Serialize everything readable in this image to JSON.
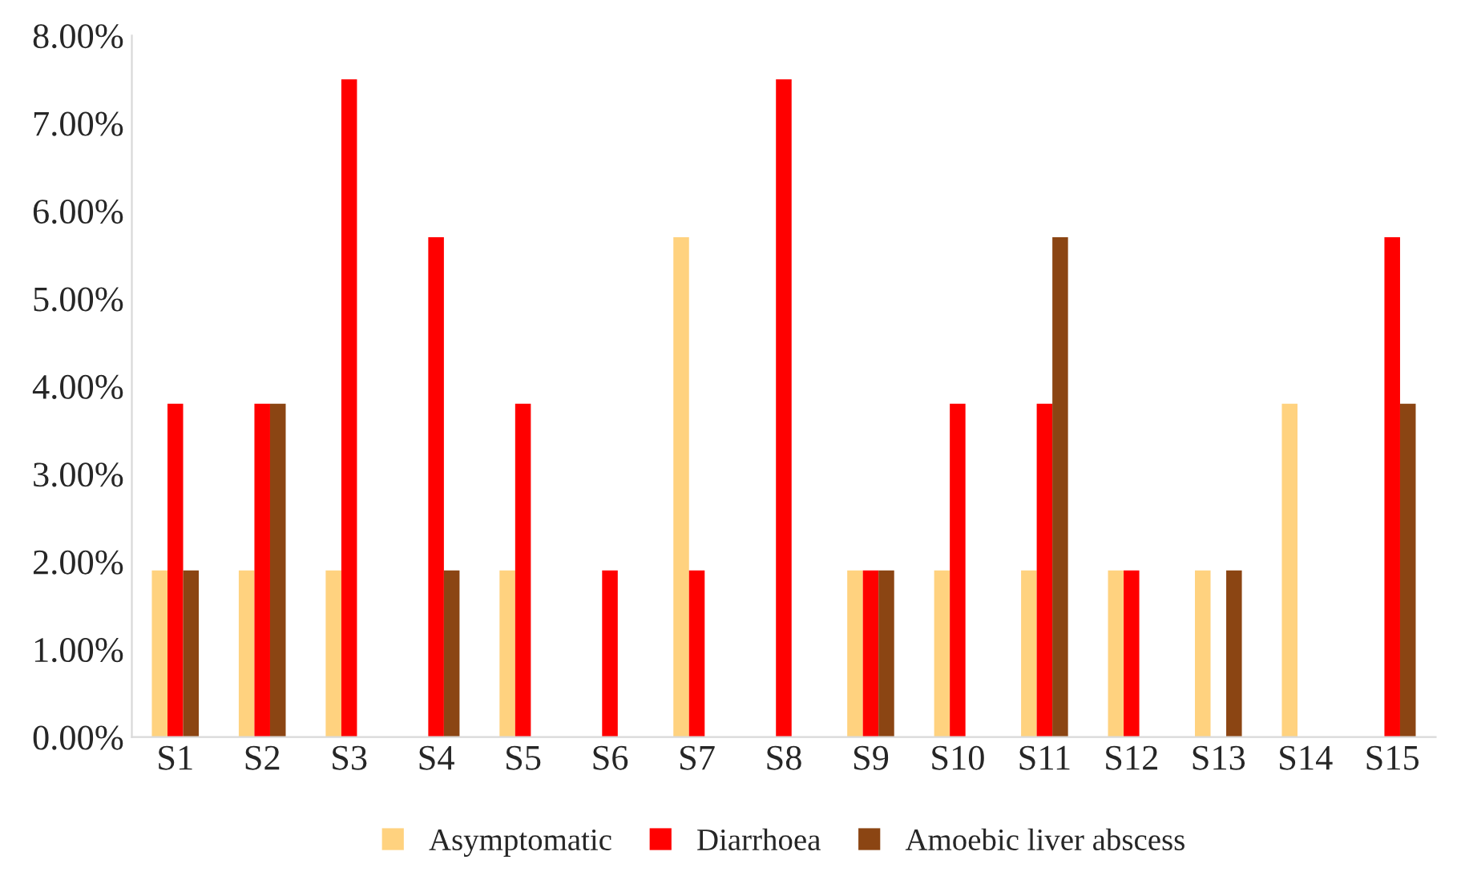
{
  "chart_data": {
    "type": "bar",
    "categories": [
      "S1",
      "S2",
      "S3",
      "S4",
      "S5",
      "S6",
      "S7",
      "S8",
      "S9",
      "S10",
      "S11",
      "S12",
      "S13",
      "S14",
      "S15"
    ],
    "series": [
      {
        "name": "Asymptomatic",
        "color": "#ffd27f",
        "values": [
          1.9,
          1.9,
          1.9,
          0,
          1.9,
          0,
          5.7,
          0,
          1.9,
          1.9,
          1.9,
          1.9,
          1.9,
          3.8,
          0
        ]
      },
      {
        "name": "Diarrhoea",
        "color": "#ff0000",
        "values": [
          3.8,
          3.8,
          7.5,
          5.7,
          3.8,
          1.9,
          1.9,
          7.5,
          1.9,
          3.8,
          3.8,
          1.9,
          0,
          0,
          5.7
        ]
      },
      {
        "name": "Amoebic liver abscess",
        "color": "#8b4513",
        "values": [
          1.9,
          3.8,
          0,
          1.9,
          0,
          0,
          0,
          0,
          1.9,
          0,
          5.7,
          0,
          1.9,
          0,
          3.8
        ]
      }
    ],
    "ylim": [
      0,
      8
    ],
    "yticks": [
      {
        "value": 0,
        "label": "0.00%"
      },
      {
        "value": 1,
        "label": "1.00%"
      },
      {
        "value": 2,
        "label": "2.00%"
      },
      {
        "value": 3,
        "label": "3.00%"
      },
      {
        "value": 4,
        "label": "4.00%"
      },
      {
        "value": 5,
        "label": "5.00%"
      },
      {
        "value": 6,
        "label": "6.00%"
      },
      {
        "value": 7,
        "label": "7.00%"
      },
      {
        "value": 8,
        "label": "8.00%"
      }
    ],
    "grid": false,
    "legend": "bottom"
  }
}
